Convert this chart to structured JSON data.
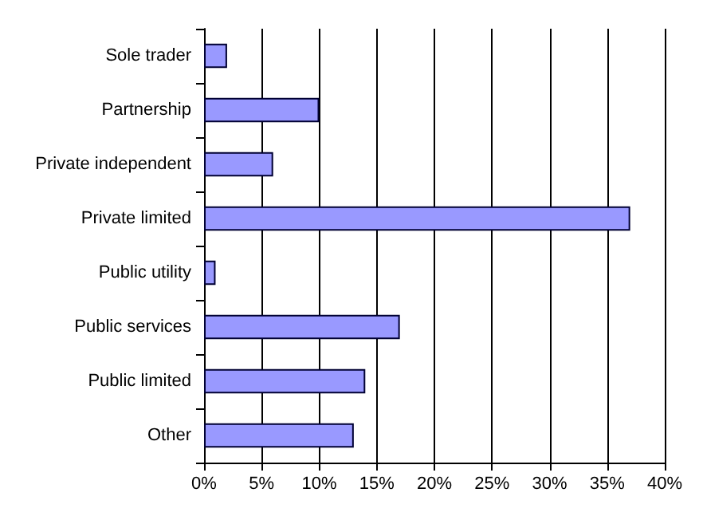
{
  "chart_data": {
    "type": "bar",
    "orientation": "horizontal",
    "categories": [
      "Sole trader",
      "Partnership",
      "Private independent",
      "Private limited",
      "Public utility",
      "Public services",
      "Public limited",
      "Other"
    ],
    "values": [
      2,
      10,
      6,
      37,
      1,
      17,
      14,
      13
    ],
    "color": "#9999ff",
    "xlim": [
      0,
      40
    ],
    "xticks": [
      {
        "value": 0,
        "label": "0%"
      },
      {
        "value": 5,
        "label": "5%"
      },
      {
        "value": 10,
        "label": "10%"
      },
      {
        "value": 15,
        "label": "15%"
      },
      {
        "value": 20,
        "label": "20%"
      },
      {
        "value": 25,
        "label": "25%"
      },
      {
        "value": 30,
        "label": "30%"
      },
      {
        "value": 35,
        "label": "35%"
      },
      {
        "value": 40,
        "label": "40%"
      }
    ],
    "grid": "x"
  }
}
